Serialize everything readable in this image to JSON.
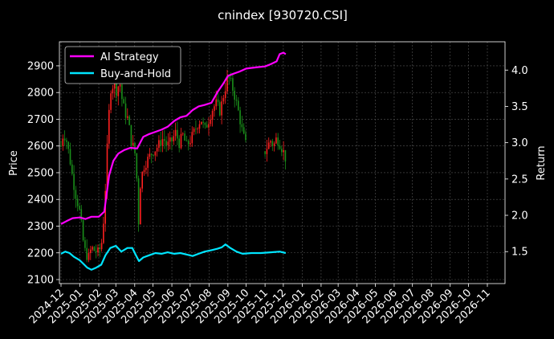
{
  "chart_data": {
    "type": "line",
    "title": "cnindex [930720.CSI]",
    "xlabel": "",
    "ylabel": "Price",
    "ylabel_right": "Return",
    "ylim": [
      2085,
      2990
    ],
    "ylim_right": [
      1.06,
      4.39
    ],
    "yticks": [
      2100,
      2200,
      2300,
      2400,
      2500,
      2600,
      2700,
      2800,
      2900
    ],
    "yticks_right": [
      "1.5",
      "2.0",
      "2.5",
      "3.0",
      "3.5",
      "4.0"
    ],
    "xticks": [
      "2024-12",
      "2025-01",
      "2025-02",
      "2025-03",
      "2025-04",
      "2025-05",
      "2025-06",
      "2025-07",
      "2025-08",
      "2025-09",
      "2025-10",
      "2025-11",
      "2025-12",
      "2026-01",
      "2026-02",
      "2026-03",
      "2026-04",
      "2026-05",
      "2026-06",
      "2026-07",
      "2026-08",
      "2026-09",
      "2026-10",
      "2026-11"
    ],
    "grid": true,
    "legend_position": "top-left",
    "colors": {
      "background": "#000000",
      "ai_strategy": "#ff00ff",
      "buy_and_hold": "#00e5ff",
      "candle_up": "#ff2020",
      "candle_down": "#1a8f1a",
      "grid": "#555555"
    },
    "series": [
      {
        "name": "AI Strategy",
        "axis": "right",
        "x": [
          "2024-12-01",
          "2024-12-10",
          "2024-12-20",
          "2025-01-01",
          "2025-01-10",
          "2025-01-20",
          "2025-02-01",
          "2025-02-10",
          "2025-02-18",
          "2025-02-25",
          "2025-03-05",
          "2025-03-15",
          "2025-03-25",
          "2025-04-05",
          "2025-04-15",
          "2025-04-25",
          "2025-05-05",
          "2025-05-15",
          "2025-05-25",
          "2025-06-05",
          "2025-06-15",
          "2025-06-25",
          "2025-07-05",
          "2025-07-15",
          "2025-07-25",
          "2025-08-05",
          "2025-08-15",
          "2025-08-25",
          "2025-09-01",
          "2025-09-10",
          "2025-09-20",
          "2025-10-01",
          "2025-10-10",
          "2025-10-20",
          "2025-11-01",
          "2025-11-10",
          "2025-11-20",
          "2025-11-25",
          "2025-12-01",
          "2025-12-05"
        ],
        "values": [
          1.88,
          1.92,
          1.96,
          1.97,
          1.95,
          1.98,
          1.98,
          2.05,
          2.55,
          2.75,
          2.85,
          2.9,
          2.93,
          2.92,
          3.08,
          3.12,
          3.15,
          3.18,
          3.22,
          3.3,
          3.35,
          3.37,
          3.45,
          3.5,
          3.52,
          3.55,
          3.7,
          3.82,
          3.92,
          3.95,
          3.98,
          4.02,
          4.03,
          4.04,
          4.05,
          4.08,
          4.12,
          4.22,
          4.24,
          4.22
        ]
      },
      {
        "name": "Buy-and-Hold",
        "axis": "right",
        "x": [
          "2024-12-01",
          "2024-12-08",
          "2024-12-15",
          "2024-12-22",
          "2025-01-01",
          "2025-01-07",
          "2025-01-13",
          "2025-01-20",
          "2025-01-28",
          "2025-02-05",
          "2025-02-12",
          "2025-02-20",
          "2025-03-01",
          "2025-03-10",
          "2025-03-20",
          "2025-03-28",
          "2025-04-03",
          "2025-04-08",
          "2025-04-15",
          "2025-04-25",
          "2025-05-05",
          "2025-05-15",
          "2025-05-25",
          "2025-06-05",
          "2025-06-15",
          "2025-06-25",
          "2025-07-05",
          "2025-07-15",
          "2025-07-25",
          "2025-08-05",
          "2025-08-15",
          "2025-08-22",
          "2025-08-28",
          "2025-09-05",
          "2025-09-15",
          "2025-09-25",
          "2025-10-10",
          "2025-10-25",
          "2025-11-10",
          "2025-11-25",
          "2025-12-05"
        ],
        "values": [
          1.47,
          1.5,
          1.48,
          1.43,
          1.38,
          1.33,
          1.28,
          1.25,
          1.28,
          1.32,
          1.45,
          1.55,
          1.58,
          1.5,
          1.55,
          1.55,
          1.45,
          1.37,
          1.42,
          1.45,
          1.48,
          1.47,
          1.49,
          1.47,
          1.48,
          1.46,
          1.44,
          1.47,
          1.5,
          1.52,
          1.54,
          1.56,
          1.6,
          1.55,
          1.5,
          1.47,
          1.48,
          1.48,
          1.49,
          1.5,
          1.48
        ]
      }
    ],
    "candles": {
      "axis": "left",
      "segments": [
        {
          "x": [
            "2024-12-01",
            "2024-12-05",
            "2024-12-10",
            "2024-12-15",
            "2024-12-20",
            "2024-12-25",
            "2025-01-01",
            "2025-01-06",
            "2025-01-10",
            "2025-01-15",
            "2025-01-20",
            "2025-01-24",
            "2025-02-01",
            "2025-02-07",
            "2025-02-12",
            "2025-02-17",
            "2025-02-21",
            "2025-02-26",
            "2025-03-03",
            "2025-03-07",
            "2025-03-12",
            "2025-03-17",
            "2025-03-21",
            "2025-03-26",
            "2025-04-01",
            "2025-04-04",
            "2025-04-07",
            "2025-04-10",
            "2025-04-15",
            "2025-04-20",
            "2025-04-25",
            "2025-05-01",
            "2025-05-06",
            "2025-05-12",
            "2025-05-18",
            "2025-05-24",
            "2025-06-01",
            "2025-06-07",
            "2025-06-13",
            "2025-06-19",
            "2025-06-25",
            "2025-07-01",
            "2025-07-07",
            "2025-07-13",
            "2025-07-19",
            "2025-07-25",
            "2025-08-01",
            "2025-08-07",
            "2025-08-13",
            "2025-08-19",
            "2025-08-25",
            "2025-09-01",
            "2025-09-07",
            "2025-09-13",
            "2025-09-19",
            "2025-09-25",
            "2025-10-01"
          ],
          "values": [
            2600,
            2650,
            2620,
            2560,
            2480,
            2420,
            2350,
            2250,
            2200,
            2180,
            2220,
            2210,
            2200,
            2250,
            2450,
            2700,
            2820,
            2830,
            2800,
            2850,
            2760,
            2720,
            2700,
            2620,
            2580,
            2500,
            2300,
            2450,
            2520,
            2540,
            2560,
            2580,
            2590,
            2610,
            2630,
            2600,
            2620,
            2650,
            2610,
            2640,
            2600,
            2620,
            2650,
            2680,
            2700,
            2660,
            2700,
            2740,
            2760,
            2730,
            2790,
            2860,
            2830,
            2780,
            2720,
            2650,
            2600
          ]
        },
        {
          "x": [
            "2025-11-01",
            "2025-11-05",
            "2025-11-10",
            "2025-11-15",
            "2025-11-20",
            "2025-11-25",
            "2025-12-01",
            "2025-12-05"
          ],
          "values": [
            2580,
            2600,
            2620,
            2600,
            2630,
            2610,
            2580,
            2550
          ]
        }
      ]
    }
  }
}
